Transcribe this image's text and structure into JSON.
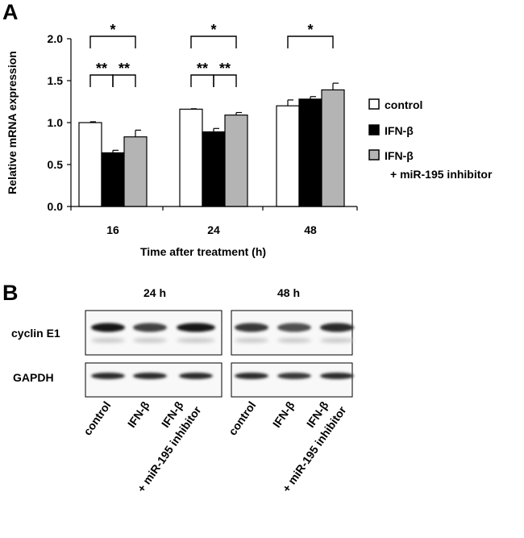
{
  "panel_a_label": "A",
  "panel_b_label": "B",
  "chart_data": {
    "type": "bar",
    "ylabel": "Relative mRNA expression",
    "xlabel": "Time after treatment (h)",
    "ylim": [
      0,
      2.0
    ],
    "yticks": [
      "0.0",
      "0.5",
      "1.0",
      "1.5",
      "2.0"
    ],
    "categories": [
      "16",
      "24",
      "48"
    ],
    "series": [
      {
        "name": "control",
        "color": "#ffffff",
        "values": [
          1.0,
          1.16,
          1.2
        ],
        "errors": [
          0.01,
          0.005,
          0.07
        ]
      },
      {
        "name": "IFN-β",
        "color": "#000000",
        "values": [
          0.64,
          0.89,
          1.28
        ],
        "errors": [
          0.03,
          0.04,
          0.03
        ]
      },
      {
        "name": "IFN-β",
        "name_line2": "+ miR-195 inhibitor",
        "color": "#b4b4b4",
        "values": [
          0.83,
          1.09,
          1.39
        ],
        "errors": [
          0.08,
          0.03,
          0.08
        ]
      }
    ],
    "significance": [
      {
        "group": 0,
        "from": 0,
        "to": 2,
        "level": 1,
        "label": "*"
      },
      {
        "group": 0,
        "from": 0,
        "to": 1,
        "level": 0,
        "label": "**"
      },
      {
        "group": 0,
        "from": 1,
        "to": 2,
        "level": 0,
        "label": "**"
      },
      {
        "group": 1,
        "from": 0,
        "to": 2,
        "level": 1,
        "label": "*"
      },
      {
        "group": 1,
        "from": 0,
        "to": 1,
        "level": 0,
        "label": "**"
      },
      {
        "group": 1,
        "from": 1,
        "to": 2,
        "level": 0,
        "label": "**"
      },
      {
        "group": 2,
        "from": 0,
        "to": 2,
        "level": 1,
        "label": "*"
      }
    ],
    "legend_position": "right"
  },
  "blot": {
    "timepoints": [
      "24 h",
      "48 h"
    ],
    "rows": [
      "cyclin E1",
      "GAPDH"
    ],
    "lanes": [
      {
        "line1": "control",
        "line2": ""
      },
      {
        "line1": "IFN-β",
        "line2": ""
      },
      {
        "line1": "IFN-β",
        "line2": "+ miR-195 inhibitor"
      }
    ],
    "band_intensity": {
      "cyclin E1": [
        [
          1.0,
          0.8,
          1.0
        ],
        [
          0.85,
          0.75,
          0.9
        ]
      ],
      "GAPDH": [
        [
          0.9,
          0.9,
          0.9
        ],
        [
          0.9,
          0.85,
          0.9
        ]
      ]
    }
  }
}
